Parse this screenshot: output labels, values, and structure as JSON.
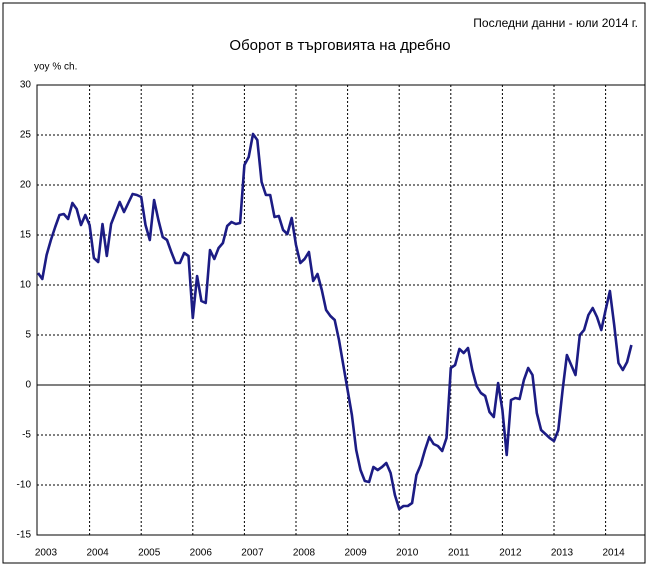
{
  "chart_data": {
    "type": "line",
    "title": "Оборот в търговията на дребно",
    "annotation": "Последни данни - юли 2014 г.",
    "ylabel": "yoy % ch.",
    "categories": [
      "2003",
      null,
      null,
      null,
      null,
      null,
      null,
      null,
      null,
      null,
      null,
      null,
      "2004",
      null,
      null,
      null,
      null,
      null,
      null,
      null,
      null,
      null,
      null,
      null,
      "2005",
      null,
      null,
      null,
      null,
      null,
      null,
      null,
      null,
      null,
      null,
      null,
      "2006",
      null,
      null,
      null,
      null,
      null,
      null,
      null,
      null,
      null,
      null,
      null,
      "2007",
      null,
      null,
      null,
      null,
      null,
      null,
      null,
      null,
      null,
      null,
      null,
      "2008",
      null,
      null,
      null,
      null,
      null,
      null,
      null,
      null,
      null,
      null,
      null,
      "2009",
      null,
      null,
      null,
      null,
      null,
      null,
      null,
      null,
      null,
      null,
      null,
      "2010",
      null,
      null,
      null,
      null,
      null,
      null,
      null,
      null,
      null,
      null,
      null,
      "2011",
      null,
      null,
      null,
      null,
      null,
      null,
      null,
      null,
      null,
      null,
      null,
      "2012",
      null,
      null,
      null,
      null,
      null,
      null,
      null,
      null,
      null,
      null,
      null,
      "2013",
      null,
      null,
      null,
      null,
      null,
      null,
      null,
      null,
      null,
      null,
      null,
      "2014",
      null,
      null,
      null,
      null,
      null,
      null
    ],
    "series": [
      {
        "name": "yoy",
        "color": "#1c1c84",
        "values": [
          11.2,
          10.6,
          13,
          14.5,
          15.8,
          17,
          17.1,
          16.6,
          18.2,
          17.6,
          16,
          17,
          16,
          12.7,
          12.3,
          16.1,
          12.9,
          16.1,
          17.2,
          18.3,
          17.3,
          18.2,
          19.1,
          19,
          18.8,
          16,
          14.5,
          18.5,
          16.5,
          14.8,
          14.5,
          13.3,
          12.2,
          12.2,
          13.2,
          12.9,
          6.7,
          10.9,
          8.4,
          8.2,
          13.5,
          12.6,
          13.7,
          14.2,
          15.9,
          16.3,
          16.1,
          16.2,
          22,
          22.8,
          25.1,
          24.5,
          20.3,
          19,
          19,
          16.8,
          16.9,
          15.5,
          15.1,
          16.7,
          14,
          12.2,
          12.6,
          13.3,
          10.4,
          11.1,
          9.5,
          7.5,
          6.9,
          6.5,
          4.5,
          2,
          -0.5,
          -3,
          -6.5,
          -8.5,
          -9.6,
          -9.7,
          -8.2,
          -8.5,
          -8.2,
          -7.8,
          -8.8,
          -11,
          -12.4,
          -12.1,
          -12.1,
          -11.8,
          -9,
          -8,
          -6.5,
          -5.2,
          -5.9,
          -6.1,
          -6.6,
          -5.3,
          1.7,
          2,
          3.6,
          3.2,
          3.7,
          1.5,
          -0.1,
          -0.8,
          -1.1,
          -2.7,
          -3.2,
          0.2,
          -2.5,
          -7,
          -1.5,
          -1.3,
          -1.4,
          0.5,
          1.7,
          1,
          -2.8,
          -4.5,
          -4.9,
          -5.3,
          -5.6,
          -4.5,
          -0.5,
          3,
          2,
          1,
          5,
          5.5,
          7,
          7.7,
          6.8,
          5.5,
          7.5,
          9.4,
          6,
          2.2,
          1.5,
          2.3,
          4
        ]
      }
    ],
    "ylim": [
      -15,
      30
    ],
    "yticks": [
      -15,
      -10,
      -5,
      0,
      5,
      10,
      15,
      20,
      25,
      30
    ],
    "grid": true
  }
}
